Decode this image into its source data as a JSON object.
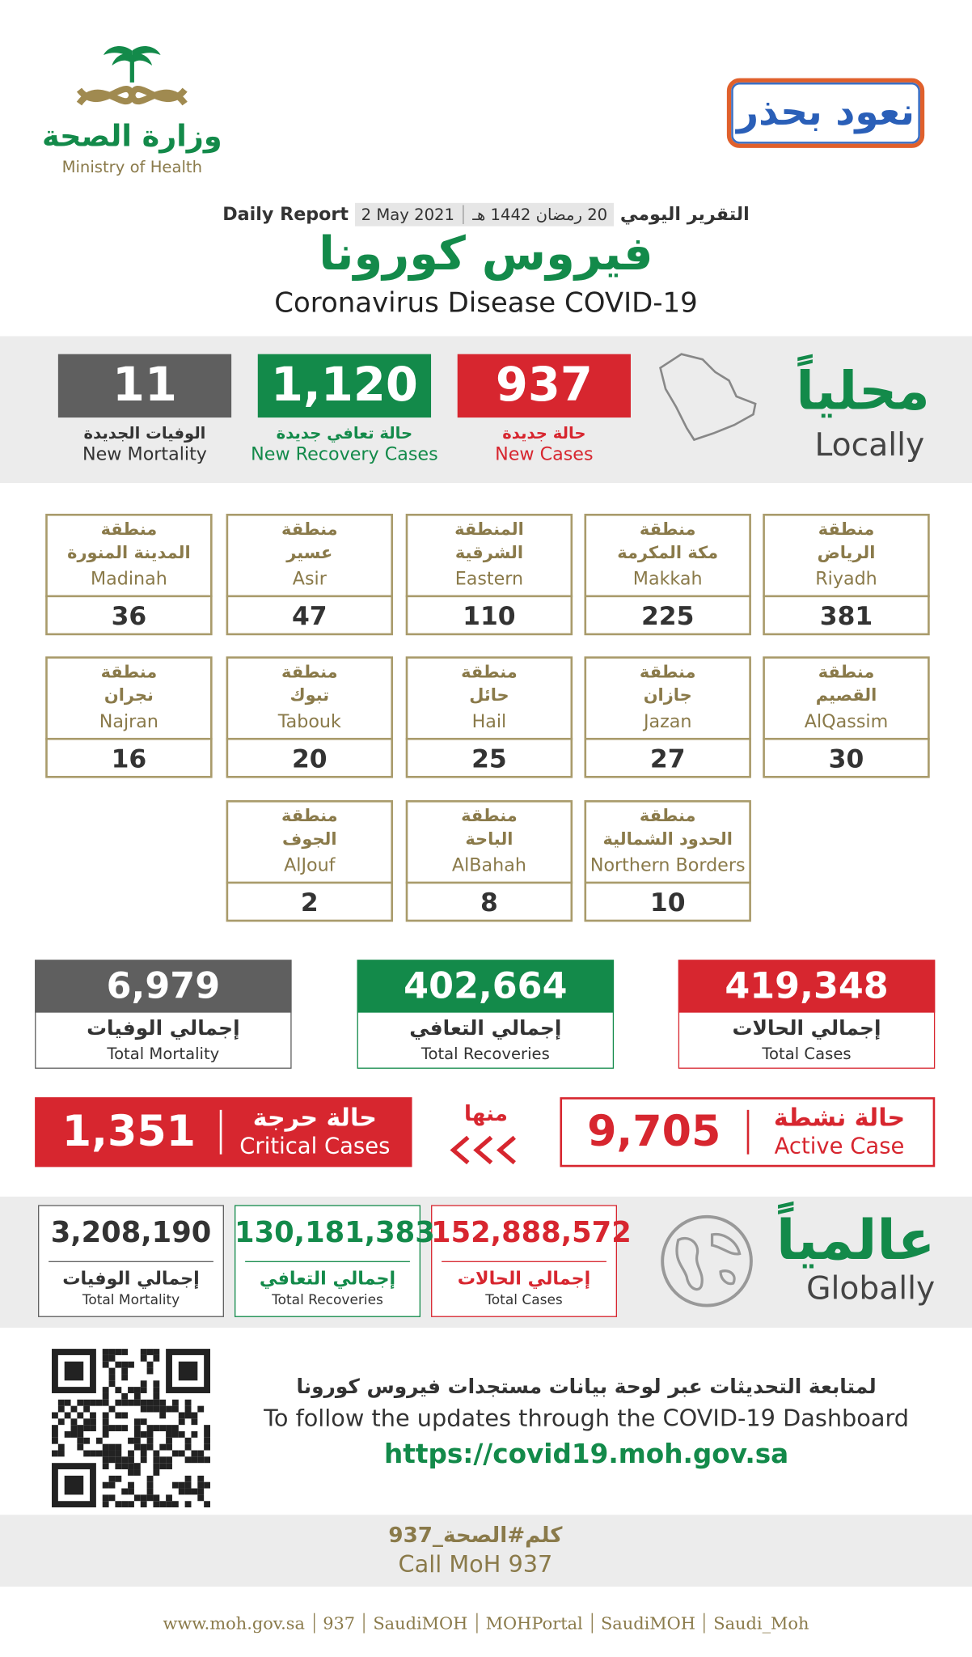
{
  "header": {
    "ministry_ar": "وزارة الصحة",
    "ministry_en": "Ministry of Health",
    "campaign": "نعود بحذر",
    "report_ar": "التقرير اليومي",
    "report_hijri": "20 رمضان 1442 هـ",
    "report_date": "2 May 2021",
    "report_en": "Daily Report",
    "title_ar": "فيروس كورونا",
    "title_en": "Coronavirus Disease COVID-19"
  },
  "local": {
    "heading_ar": "محلياً",
    "heading_en": "Locally",
    "stats": [
      {
        "value": "937",
        "label_ar": "حالة جديدة",
        "label_en": "New Cases"
      },
      {
        "value": "1,120",
        "label_ar": "حالة تعافي جديدة",
        "label_en": "New Recovery Cases"
      },
      {
        "value": "11",
        "label_ar": "الوفيات الجديدة",
        "label_en": "New Mortality"
      }
    ]
  },
  "regions": [
    {
      "line1_ar": "منطقة",
      "line2_ar": "الرياض",
      "name_en": "Riyadh",
      "value": "381"
    },
    {
      "line1_ar": "منطقة",
      "line2_ar": "مكة المكرمة",
      "name_en": "Makkah",
      "value": "225"
    },
    {
      "line1_ar": "المنطقة",
      "line2_ar": "الشرقية",
      "name_en": "Eastern",
      "value": "110"
    },
    {
      "line1_ar": "منطقة",
      "line2_ar": "عسير",
      "name_en": "Asir",
      "value": "47"
    },
    {
      "line1_ar": "منطقة",
      "line2_ar": "المدينة المنورة",
      "name_en": "Madinah",
      "value": "36"
    },
    {
      "line1_ar": "منطقة",
      "line2_ar": "القصيم",
      "name_en": "AlQassim",
      "value": "30"
    },
    {
      "line1_ar": "منطقة",
      "line2_ar": "جازان",
      "name_en": "Jazan",
      "value": "27"
    },
    {
      "line1_ar": "منطقة",
      "line2_ar": "حائل",
      "name_en": "Hail",
      "value": "25"
    },
    {
      "line1_ar": "منطقة",
      "line2_ar": "تبوك",
      "name_en": "Tabouk",
      "value": "20"
    },
    {
      "line1_ar": "منطقة",
      "line2_ar": "نجران",
      "name_en": "Najran",
      "value": "16"
    },
    {
      "line1_ar": "منطقة",
      "line2_ar": "الحدود الشمالية",
      "name_en": "Northern Borders",
      "value": "10"
    },
    {
      "line1_ar": "منطقة",
      "line2_ar": "الباحة",
      "name_en": "AlBahah",
      "value": "8"
    },
    {
      "line1_ar": "منطقة",
      "line2_ar": "الجوف",
      "name_en": "AlJouf",
      "value": "2"
    }
  ],
  "totals": [
    {
      "value": "419,348",
      "label_ar": "إجمالي الحالات",
      "label_en": "Total Cases"
    },
    {
      "value": "402,664",
      "label_ar": "إجمالي التعافي",
      "label_en": "Total Recoveries"
    },
    {
      "value": "6,979",
      "label_ar": "إجمالي الوفيات",
      "label_en": "Total Mortality"
    }
  ],
  "active": {
    "label_ar": "حالة نشطة",
    "label_en": "Active Case",
    "value": "9,705"
  },
  "of_which": "منها",
  "critical": {
    "label_ar": "حالة حرجة",
    "label_en": "Critical Cases",
    "value": "1,351"
  },
  "global": {
    "heading_ar": "عالمياً",
    "heading_en": "Globally",
    "stats": [
      {
        "value": "152,888,572",
        "label_ar": "إجمالي الحالات",
        "label_en": "Total Cases"
      },
      {
        "value": "130,181,383",
        "label_ar": "إجمالي التعافي",
        "label_en": "Total Recoveries"
      },
      {
        "value": "3,208,190",
        "label_ar": "إجمالي الوفيات",
        "label_en": "Total Mortality"
      }
    ]
  },
  "footer": {
    "follow_ar": "لمتابعة التحديثات عبر لوحة بيانات مستجدات فيروس كورونا",
    "follow_en": "To follow the updates through the COVID-19 Dashboard",
    "url": "https://covid19.moh.gov.sa",
    "call_ar": "كلم#الصحة_937",
    "call_en": "Call MoH 937",
    "links": [
      "www.moh.gov.sa",
      "937",
      "SaudiMOH",
      "MOHPortal",
      "SaudiMOH",
      "Saudi_Moh"
    ]
  }
}
